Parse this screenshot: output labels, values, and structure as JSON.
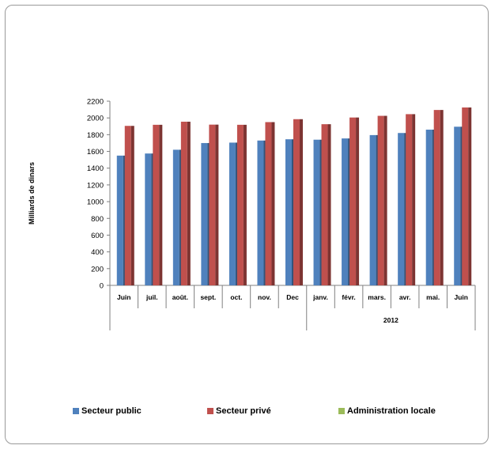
{
  "chart_data": {
    "type": "bar",
    "ylabel": "Milliards de dinars",
    "ylim": [
      0,
      2200
    ],
    "yticks": [
      0,
      200,
      400,
      600,
      800,
      1000,
      1200,
      1400,
      1600,
      1800,
      2000,
      2200
    ],
    "categories": [
      "Juin",
      "juil.",
      "août.",
      "sept.",
      "oct.",
      "nov.",
      "Dec",
      "janv.",
      "févr.",
      "mars.",
      "avr.",
      "mai.",
      "Juin"
    ],
    "groups": [
      {
        "label": "",
        "start": 0,
        "end": 6
      },
      {
        "label": "2012",
        "start": 7,
        "end": 12
      }
    ],
    "series": [
      {
        "name": "Secteur public",
        "color": "#4f81bd",
        "values": [
          1550,
          1575,
          1620,
          1700,
          1705,
          1730,
          1745,
          1740,
          1755,
          1795,
          1820,
          1860,
          1895
        ]
      },
      {
        "name": "Secteur privé",
        "color": "#c0504d",
        "values": [
          1905,
          1918,
          1955,
          1920,
          1918,
          1950,
          1985,
          1925,
          2005,
          2025,
          2045,
          2095,
          2125
        ]
      },
      {
        "name": "Administration locale",
        "color": "#9bbb59",
        "values": [
          0,
          0,
          0,
          0,
          0,
          0,
          0,
          0,
          0,
          0,
          0,
          0,
          0
        ]
      }
    ],
    "legend_position": "bottom",
    "grid": false
  }
}
